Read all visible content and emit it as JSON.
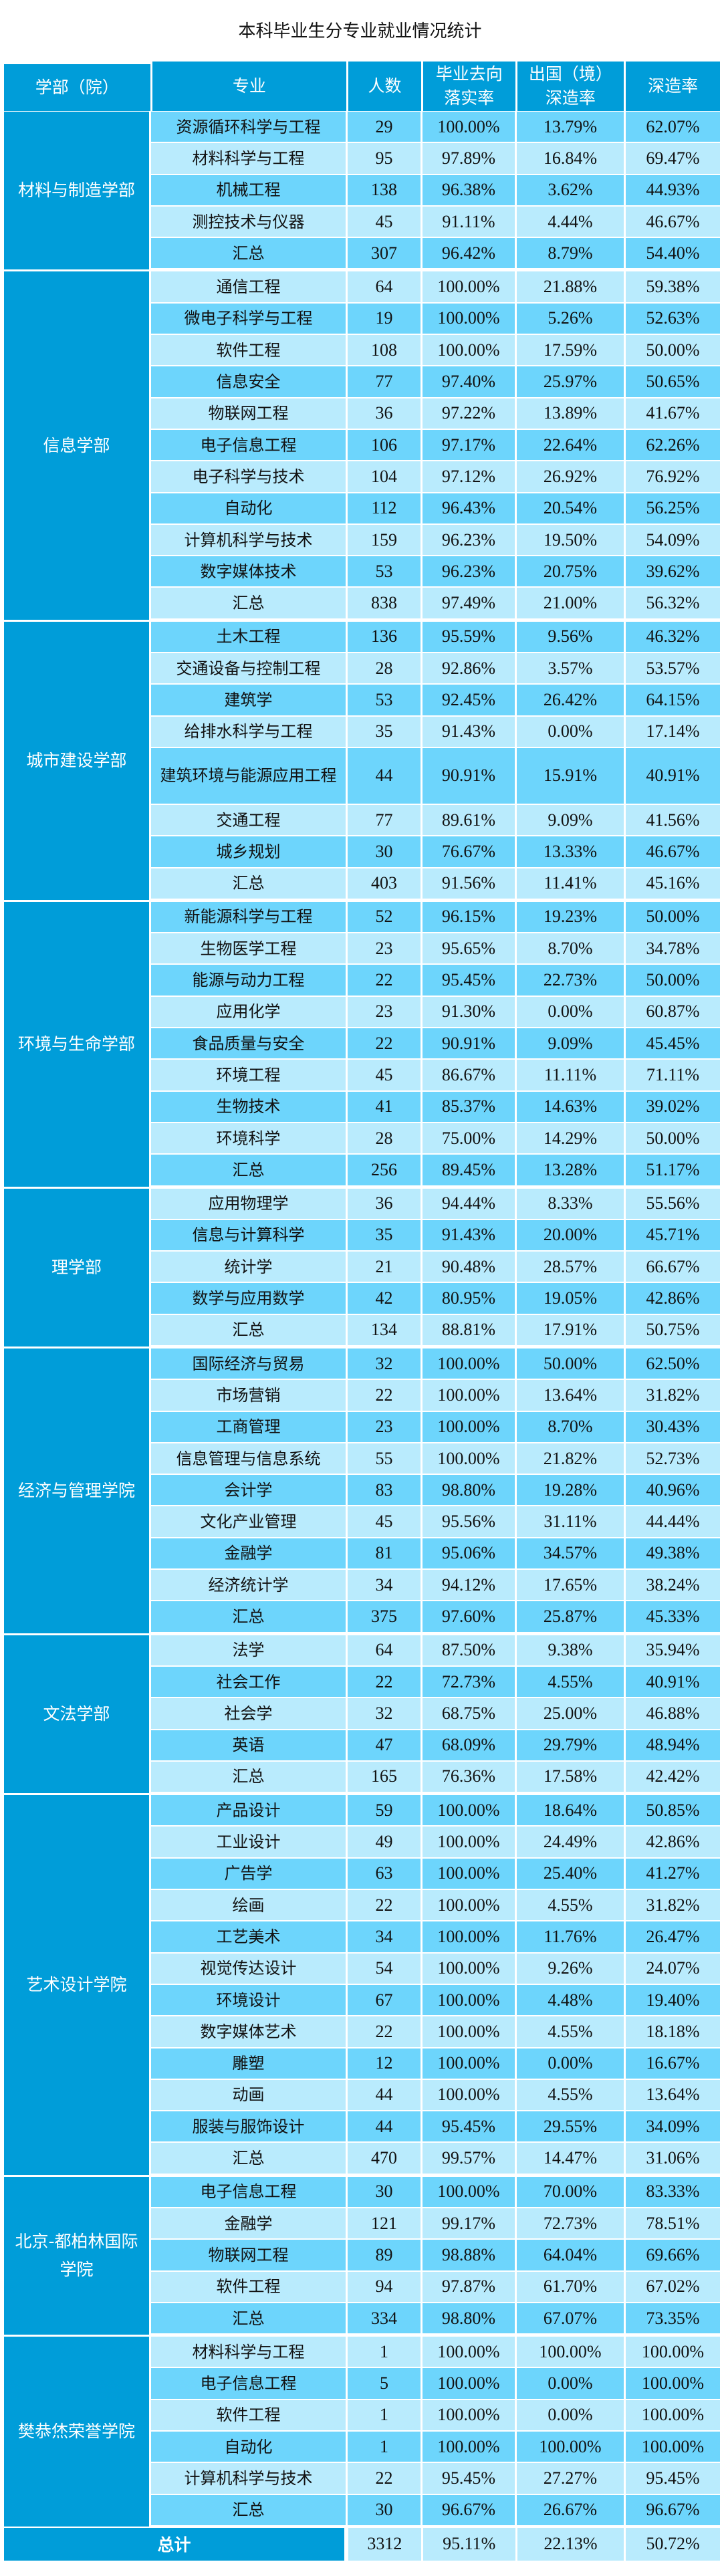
{
  "title": "本科毕业生分专业就业情况统计",
  "headers": {
    "dept": "学部（院）",
    "major": "专业",
    "count": "人数",
    "placement_rate": "毕业去向\n落实率",
    "abroad_rate": "出国（境）\n深造率",
    "further_study_rate": "深造率"
  },
  "colors": {
    "header_bg": "#009DD9",
    "row_dark": "#6DD5FC",
    "row_light": "#B9EBFD",
    "header_text": "#FFFFFF"
  },
  "departments": [
    {
      "name": "材料与制造学部",
      "rows": [
        {
          "major": "资源循环科学与工程",
          "count": "29",
          "placement": "100.00%",
          "abroad": "13.79%",
          "further": "62.07%",
          "shade": "dark"
        },
        {
          "major": "材料科学与工程",
          "count": "95",
          "placement": "97.89%",
          "abroad": "16.84%",
          "further": "69.47%",
          "shade": "light"
        },
        {
          "major": "机械工程",
          "count": "138",
          "placement": "96.38%",
          "abroad": "3.62%",
          "further": "44.93%",
          "shade": "dark"
        },
        {
          "major": "测控技术与仪器",
          "count": "45",
          "placement": "91.11%",
          "abroad": "4.44%",
          "further": "46.67%",
          "shade": "light"
        },
        {
          "major": "汇总",
          "count": "307",
          "placement": "96.42%",
          "abroad": "8.79%",
          "further": "54.40%",
          "shade": "dark"
        }
      ]
    },
    {
      "name": "信息学部",
      "rows": [
        {
          "major": "通信工程",
          "count": "64",
          "placement": "100.00%",
          "abroad": "21.88%",
          "further": "59.38%",
          "shade": "light"
        },
        {
          "major": "微电子科学与工程",
          "count": "19",
          "placement": "100.00%",
          "abroad": "5.26%",
          "further": "52.63%",
          "shade": "dark"
        },
        {
          "major": "软件工程",
          "count": "108",
          "placement": "100.00%",
          "abroad": "17.59%",
          "further": "50.00%",
          "shade": "light"
        },
        {
          "major": "信息安全",
          "count": "77",
          "placement": "97.40%",
          "abroad": "25.97%",
          "further": "50.65%",
          "shade": "dark"
        },
        {
          "major": "物联网工程",
          "count": "36",
          "placement": "97.22%",
          "abroad": "13.89%",
          "further": "41.67%",
          "shade": "light"
        },
        {
          "major": "电子信息工程",
          "count": "106",
          "placement": "97.17%",
          "abroad": "22.64%",
          "further": "62.26%",
          "shade": "dark"
        },
        {
          "major": "电子科学与技术",
          "count": "104",
          "placement": "97.12%",
          "abroad": "26.92%",
          "further": "76.92%",
          "shade": "light"
        },
        {
          "major": "自动化",
          "count": "112",
          "placement": "96.43%",
          "abroad": "20.54%",
          "further": "56.25%",
          "shade": "dark"
        },
        {
          "major": "计算机科学与技术",
          "count": "159",
          "placement": "96.23%",
          "abroad": "19.50%",
          "further": "54.09%",
          "shade": "light"
        },
        {
          "major": "数字媒体技术",
          "count": "53",
          "placement": "96.23%",
          "abroad": "20.75%",
          "further": "39.62%",
          "shade": "dark"
        },
        {
          "major": "汇总",
          "count": "838",
          "placement": "97.49%",
          "abroad": "21.00%",
          "further": "56.32%",
          "shade": "light"
        }
      ]
    },
    {
      "name": "城市建设学部",
      "rows": [
        {
          "major": "土木工程",
          "count": "136",
          "placement": "95.59%",
          "abroad": "9.56%",
          "further": "46.32%",
          "shade": "dark"
        },
        {
          "major": "交通设备与控制工程",
          "count": "28",
          "placement": "92.86%",
          "abroad": "3.57%",
          "further": "53.57%",
          "shade": "light"
        },
        {
          "major": "建筑学",
          "count": "53",
          "placement": "92.45%",
          "abroad": "26.42%",
          "further": "64.15%",
          "shade": "dark"
        },
        {
          "major": "给排水科学与工程",
          "count": "35",
          "placement": "91.43%",
          "abroad": "0.00%",
          "further": "17.14%",
          "shade": "light"
        },
        {
          "major": "建筑环境与能源应用工程",
          "count": "44",
          "placement": "90.91%",
          "abroad": "15.91%",
          "further": "40.91%",
          "shade": "dark",
          "tall": true
        },
        {
          "major": "交通工程",
          "count": "77",
          "placement": "89.61%",
          "abroad": "9.09%",
          "further": "41.56%",
          "shade": "light"
        },
        {
          "major": "城乡规划",
          "count": "30",
          "placement": "76.67%",
          "abroad": "13.33%",
          "further": "46.67%",
          "shade": "dark"
        },
        {
          "major": "汇总",
          "count": "403",
          "placement": "91.56%",
          "abroad": "11.41%",
          "further": "45.16%",
          "shade": "light"
        }
      ]
    },
    {
      "name": "环境与生命学部",
      "rows": [
        {
          "major": "新能源科学与工程",
          "count": "52",
          "placement": "96.15%",
          "abroad": "19.23%",
          "further": "50.00%",
          "shade": "dark"
        },
        {
          "major": "生物医学工程",
          "count": "23",
          "placement": "95.65%",
          "abroad": "8.70%",
          "further": "34.78%",
          "shade": "light"
        },
        {
          "major": "能源与动力工程",
          "count": "22",
          "placement": "95.45%",
          "abroad": "22.73%",
          "further": "50.00%",
          "shade": "dark"
        },
        {
          "major": "应用化学",
          "count": "23",
          "placement": "91.30%",
          "abroad": "0.00%",
          "further": "60.87%",
          "shade": "light"
        },
        {
          "major": "食品质量与安全",
          "count": "22",
          "placement": "90.91%",
          "abroad": "9.09%",
          "further": "45.45%",
          "shade": "dark"
        },
        {
          "major": "环境工程",
          "count": "45",
          "placement": "86.67%",
          "abroad": "11.11%",
          "further": "71.11%",
          "shade": "light"
        },
        {
          "major": "生物技术",
          "count": "41",
          "placement": "85.37%",
          "abroad": "14.63%",
          "further": "39.02%",
          "shade": "dark"
        },
        {
          "major": "环境科学",
          "count": "28",
          "placement": "75.00%",
          "abroad": "14.29%",
          "further": "50.00%",
          "shade": "light"
        },
        {
          "major": "汇总",
          "count": "256",
          "placement": "89.45%",
          "abroad": "13.28%",
          "further": "51.17%",
          "shade": "dark"
        }
      ]
    },
    {
      "name": "理学部",
      "rows": [
        {
          "major": "应用物理学",
          "count": "36",
          "placement": "94.44%",
          "abroad": "8.33%",
          "further": "55.56%",
          "shade": "light"
        },
        {
          "major": "信息与计算科学",
          "count": "35",
          "placement": "91.43%",
          "abroad": "20.00%",
          "further": "45.71%",
          "shade": "dark"
        },
        {
          "major": "统计学",
          "count": "21",
          "placement": "90.48%",
          "abroad": "28.57%",
          "further": "66.67%",
          "shade": "light"
        },
        {
          "major": "数学与应用数学",
          "count": "42",
          "placement": "80.95%",
          "abroad": "19.05%",
          "further": "42.86%",
          "shade": "dark"
        },
        {
          "major": "汇总",
          "count": "134",
          "placement": "88.81%",
          "abroad": "17.91%",
          "further": "50.75%",
          "shade": "light"
        }
      ]
    },
    {
      "name": "经济与管理学院",
      "rows": [
        {
          "major": "国际经济与贸易",
          "count": "32",
          "placement": "100.00%",
          "abroad": "50.00%",
          "further": "62.50%",
          "shade": "dark"
        },
        {
          "major": "市场营销",
          "count": "22",
          "placement": "100.00%",
          "abroad": "13.64%",
          "further": "31.82%",
          "shade": "light"
        },
        {
          "major": "工商管理",
          "count": "23",
          "placement": "100.00%",
          "abroad": "8.70%",
          "further": "30.43%",
          "shade": "dark"
        },
        {
          "major": "信息管理与信息系统",
          "count": "55",
          "placement": "100.00%",
          "abroad": "21.82%",
          "further": "52.73%",
          "shade": "light"
        },
        {
          "major": "会计学",
          "count": "83",
          "placement": "98.80%",
          "abroad": "19.28%",
          "further": "40.96%",
          "shade": "dark"
        },
        {
          "major": "文化产业管理",
          "count": "45",
          "placement": "95.56%",
          "abroad": "31.11%",
          "further": "44.44%",
          "shade": "light"
        },
        {
          "major": "金融学",
          "count": "81",
          "placement": "95.06%",
          "abroad": "34.57%",
          "further": "49.38%",
          "shade": "dark"
        },
        {
          "major": "经济统计学",
          "count": "34",
          "placement": "94.12%",
          "abroad": "17.65%",
          "further": "38.24%",
          "shade": "light"
        },
        {
          "major": "汇总",
          "count": "375",
          "placement": "97.60%",
          "abroad": "25.87%",
          "further": "45.33%",
          "shade": "dark"
        }
      ]
    },
    {
      "name": "文法学部",
      "rows": [
        {
          "major": "法学",
          "count": "64",
          "placement": "87.50%",
          "abroad": "9.38%",
          "further": "35.94%",
          "shade": "light"
        },
        {
          "major": "社会工作",
          "count": "22",
          "placement": "72.73%",
          "abroad": "4.55%",
          "further": "40.91%",
          "shade": "dark"
        },
        {
          "major": "社会学",
          "count": "32",
          "placement": "68.75%",
          "abroad": "25.00%",
          "further": "46.88%",
          "shade": "light"
        },
        {
          "major": "英语",
          "count": "47",
          "placement": "68.09%",
          "abroad": "29.79%",
          "further": "48.94%",
          "shade": "dark"
        },
        {
          "major": "汇总",
          "count": "165",
          "placement": "76.36%",
          "abroad": "17.58%",
          "further": "42.42%",
          "shade": "light"
        }
      ]
    },
    {
      "name": "艺术设计学院",
      "rows": [
        {
          "major": "产品设计",
          "count": "59",
          "placement": "100.00%",
          "abroad": "18.64%",
          "further": "50.85%",
          "shade": "dark"
        },
        {
          "major": "工业设计",
          "count": "49",
          "placement": "100.00%",
          "abroad": "24.49%",
          "further": "42.86%",
          "shade": "light"
        },
        {
          "major": "广告学",
          "count": "63",
          "placement": "100.00%",
          "abroad": "25.40%",
          "further": "41.27%",
          "shade": "dark"
        },
        {
          "major": "绘画",
          "count": "22",
          "placement": "100.00%",
          "abroad": "4.55%",
          "further": "31.82%",
          "shade": "light"
        },
        {
          "major": "工艺美术",
          "count": "34",
          "placement": "100.00%",
          "abroad": "11.76%",
          "further": "26.47%",
          "shade": "dark"
        },
        {
          "major": "视觉传达设计",
          "count": "54",
          "placement": "100.00%",
          "abroad": "9.26%",
          "further": "24.07%",
          "shade": "light"
        },
        {
          "major": "环境设计",
          "count": "67",
          "placement": "100.00%",
          "abroad": "4.48%",
          "further": "19.40%",
          "shade": "dark"
        },
        {
          "major": "数字媒体艺术",
          "count": "22",
          "placement": "100.00%",
          "abroad": "4.55%",
          "further": "18.18%",
          "shade": "light"
        },
        {
          "major": "雕塑",
          "count": "12",
          "placement": "100.00%",
          "abroad": "0.00%",
          "further": "16.67%",
          "shade": "dark"
        },
        {
          "major": "动画",
          "count": "44",
          "placement": "100.00%",
          "abroad": "4.55%",
          "further": "13.64%",
          "shade": "light"
        },
        {
          "major": "服装与服饰设计",
          "count": "44",
          "placement": "95.45%",
          "abroad": "29.55%",
          "further": "34.09%",
          "shade": "dark"
        },
        {
          "major": "汇总",
          "count": "470",
          "placement": "99.57%",
          "abroad": "14.47%",
          "further": "31.06%",
          "shade": "light"
        }
      ]
    },
    {
      "name": "北京-都柏林国际学院",
      "rows": [
        {
          "major": "电子信息工程",
          "count": "30",
          "placement": "100.00%",
          "abroad": "70.00%",
          "further": "83.33%",
          "shade": "dark"
        },
        {
          "major": "金融学",
          "count": "121",
          "placement": "99.17%",
          "abroad": "72.73%",
          "further": "78.51%",
          "shade": "light"
        },
        {
          "major": "物联网工程",
          "count": "89",
          "placement": "98.88%",
          "abroad": "64.04%",
          "further": "69.66%",
          "shade": "dark"
        },
        {
          "major": "软件工程",
          "count": "94",
          "placement": "97.87%",
          "abroad": "61.70%",
          "further": "67.02%",
          "shade": "light"
        },
        {
          "major": "汇总",
          "count": "334",
          "placement": "98.80%",
          "abroad": "67.07%",
          "further": "73.35%",
          "shade": "dark"
        }
      ]
    },
    {
      "name": "樊恭烋荣誉学院",
      "rows": [
        {
          "major": "材料科学与工程",
          "count": "1",
          "placement": "100.00%",
          "abroad": "100.00%",
          "further": "100.00%",
          "shade": "light"
        },
        {
          "major": "电子信息工程",
          "count": "5",
          "placement": "100.00%",
          "abroad": "0.00%",
          "further": "100.00%",
          "shade": "dark"
        },
        {
          "major": "软件工程",
          "count": "1",
          "placement": "100.00%",
          "abroad": "0.00%",
          "further": "100.00%",
          "shade": "light"
        },
        {
          "major": "自动化",
          "count": "1",
          "placement": "100.00%",
          "abroad": "100.00%",
          "further": "100.00%",
          "shade": "dark"
        },
        {
          "major": "计算机科学与技术",
          "count": "22",
          "placement": "95.45%",
          "abroad": "27.27%",
          "further": "95.45%",
          "shade": "light"
        },
        {
          "major": "汇总",
          "count": "30",
          "placement": "96.67%",
          "abroad": "26.67%",
          "further": "96.67%",
          "shade": "dark"
        }
      ]
    }
  ],
  "grand_total": {
    "label": "总计",
    "count": "3312",
    "placement": "95.11%",
    "abroad": "22.13%",
    "further": "50.72%"
  }
}
